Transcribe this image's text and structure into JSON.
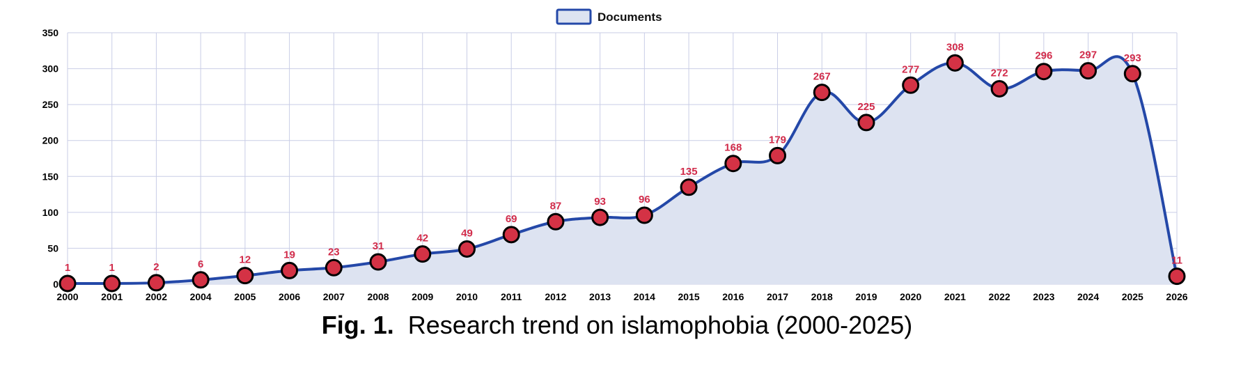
{
  "chart_data": {
    "type": "area",
    "categories": [
      "2000",
      "2001",
      "2002",
      "2004",
      "2005",
      "2006",
      "2007",
      "2008",
      "2009",
      "2010",
      "2011",
      "2012",
      "2013",
      "2014",
      "2015",
      "2016",
      "2017",
      "2018",
      "2019",
      "2020",
      "2021",
      "2022",
      "2023",
      "2024",
      "2025",
      "2026"
    ],
    "series": [
      {
        "name": "Documents",
        "values": [
          1,
          1,
          2,
          6,
          12,
          19,
          23,
          31,
          42,
          49,
          69,
          87,
          93,
          96,
          135,
          168,
          179,
          267,
          225,
          277,
          308,
          272,
          296,
          297,
          293,
          11
        ]
      }
    ],
    "ylim": [
      0,
      350
    ],
    "yticks": [
      0,
      50,
      100,
      150,
      200,
      250,
      300,
      350
    ],
    "grid": true,
    "legend_position": "top-center",
    "colors": {
      "line": "#2448a8",
      "fill": "#dde3f1",
      "marker": "#d43245",
      "marker_stroke": "#000000",
      "label": "#d12b4a",
      "grid": "#c9cde6"
    }
  },
  "caption": {
    "fig_label": "Fig. 1.",
    "text": "Research trend on islamophobia (2000-2025)"
  }
}
